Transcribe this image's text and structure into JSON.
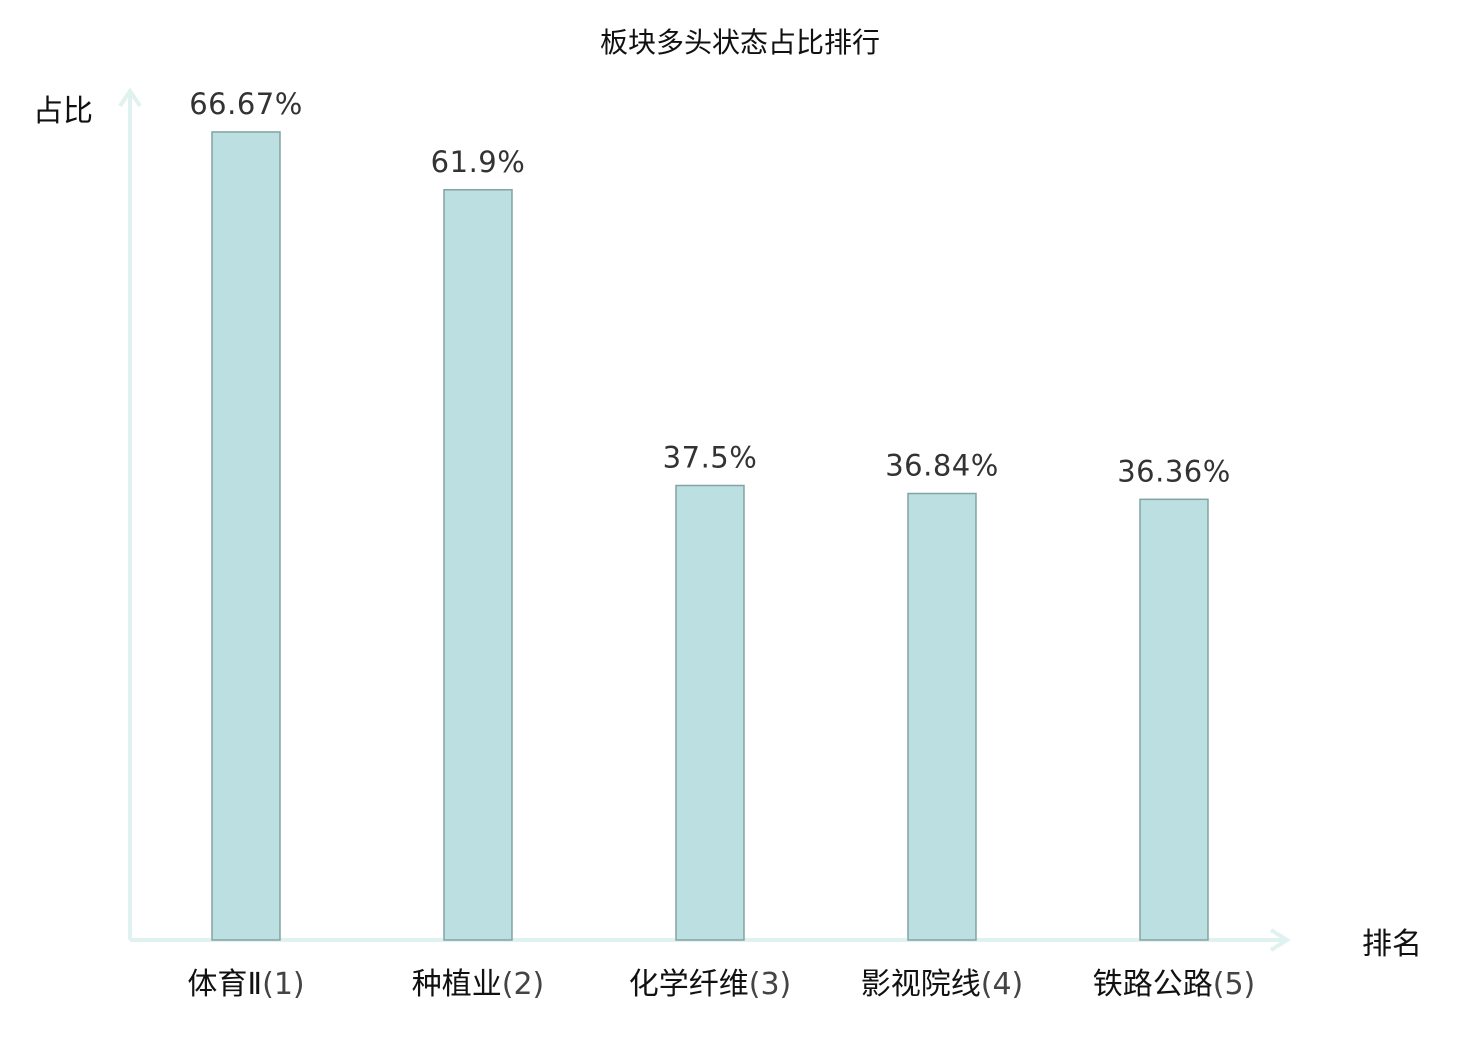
{
  "chart_data": {
    "type": "bar",
    "title": "板块多头状态占比排行",
    "xlabel": "排名",
    "ylabel": "占比",
    "categories": [
      "体育Ⅱ",
      "种植业",
      "化学纤维",
      "影视院线",
      "铁路公路"
    ],
    "ranks": [
      "(1)",
      "(2)",
      "(3)",
      "(4)",
      "(5)"
    ],
    "values": [
      66.67,
      61.9,
      37.5,
      36.84,
      36.36
    ],
    "value_labels": [
      "66.67%",
      "61.9%",
      "37.5%",
      "36.84%",
      "36.36%"
    ],
    "ylim": [
      0,
      70
    ],
    "grid": false,
    "legend": "none"
  },
  "colors": {
    "bar_fill": "#bce0e2",
    "bar_stroke": "#82a3a5",
    "axis": "#dff2ef",
    "highlight_label": "#e0282a",
    "text": "#111111",
    "value_text": "#333333"
  }
}
